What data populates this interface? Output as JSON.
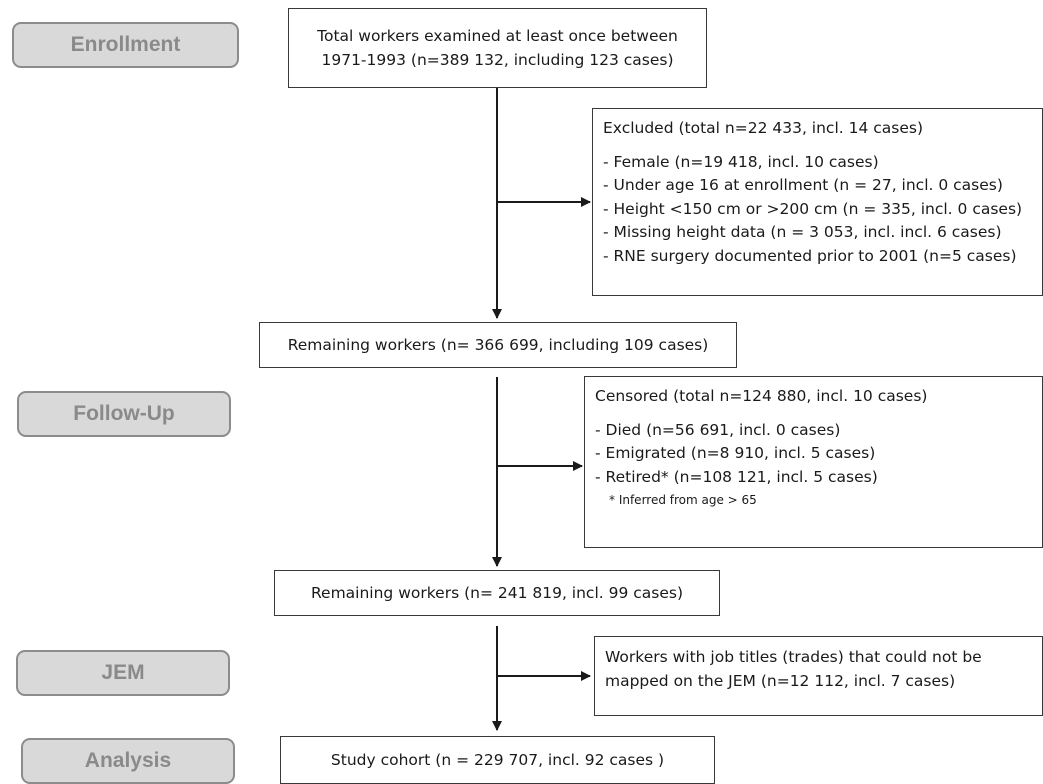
{
  "phases": {
    "enrollment": "Enrollment",
    "follow_up": "Follow-Up",
    "jem": "JEM",
    "analysis": "Analysis"
  },
  "boxes": {
    "total": [
      "Total workers examined at least once between",
      "1971-1993 (n=389 132, including 123 cases)"
    ],
    "remaining1": "Remaining workers (n= 366 699, including 109 cases)",
    "remaining2": "Remaining workers (n= 241 819, incl. 99 cases)",
    "study_cohort": "Study cohort (n = 229 707, incl. 92 cases )"
  },
  "excluded": {
    "title": "Excluded (total n=22 433, incl. 14 cases)",
    "items": [
      "- Female (n=19 418, incl. 10 cases)",
      "- Under age 16 at enrollment (n = 27, incl. 0 cases)",
      "- Height <150 cm or >200 cm (n = 335, incl. 0 cases)",
      "- Missing height data (n = 3 053, incl. incl. 6 cases)",
      "- RNE surgery documented prior to 2001 (n=5 cases)"
    ]
  },
  "censored": {
    "title": "Censored (total n=124 880, incl. 10 cases)",
    "items": [
      "- Died (n=56 691, incl. 0 cases)",
      "- Emigrated (n=8 910, incl. 5 cases)",
      "- Retired* (n=108 121, incl. 5 cases)"
    ],
    "footnote": "* Inferred from age > 65"
  },
  "jem_exclusion": [
    "Workers with job titles (trades) that could not be",
    "mapped on the JEM (n=12 112, incl. 7 cases)"
  ],
  "colors": {
    "phase_fill": "#d9d9d9",
    "phase_border": "#8c8c8c",
    "phase_text": "#8a8a8a",
    "box_border": "#3a3a3a",
    "arrow": "#1a1a1a"
  }
}
